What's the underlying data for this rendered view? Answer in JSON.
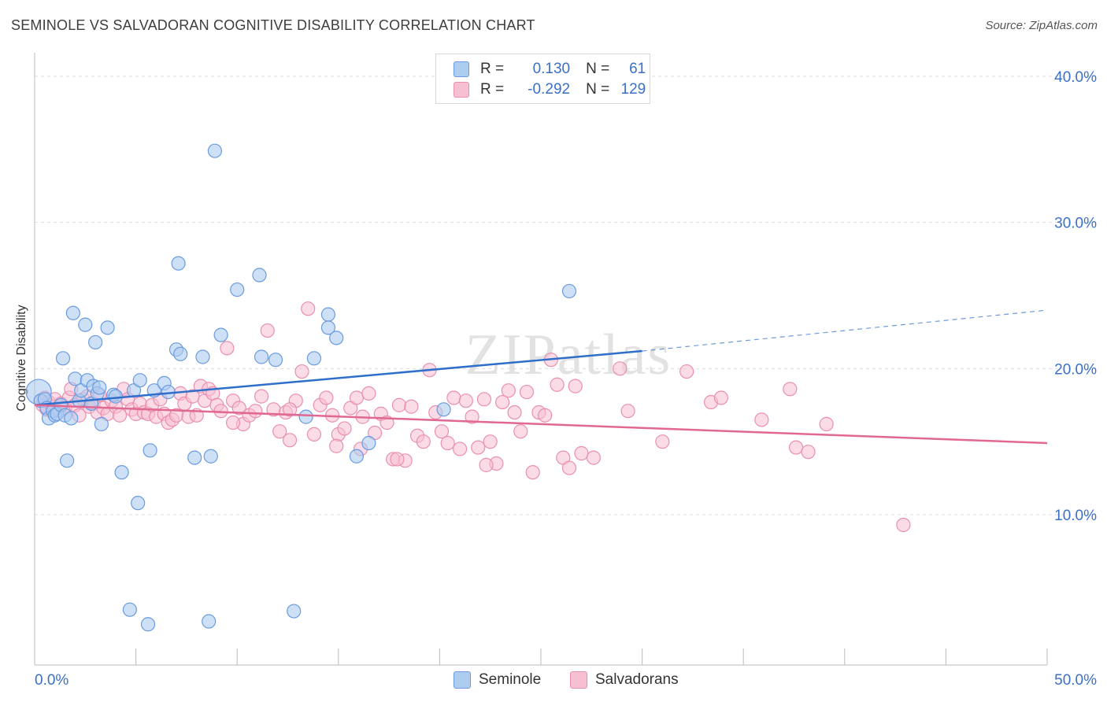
{
  "title": "SEMINOLE VS SALVADORAN COGNITIVE DISABILITY CORRELATION CHART",
  "source": "Source: ZipAtlas.com",
  "watermark": "ZIPatlas",
  "legend": {
    "rows": [
      {
        "r_label": "R =",
        "r_value": "0.130",
        "n_label": "N =",
        "n_value": "61"
      },
      {
        "r_label": "R =",
        "r_value": "-0.292",
        "n_label": "N =",
        "n_value": "129"
      }
    ]
  },
  "bottom_legend": [
    "Seminole",
    "Salvadorans"
  ],
  "colors": {
    "seminole_fill": "#aecbf0",
    "seminole_stroke": "#6a9be0",
    "seminole_line": "#2f6fcb",
    "salvadoran_fill": "#f7c0d2",
    "salvadoran_stroke": "#e98fb0",
    "salvadoran_line": "#e06892",
    "tick_label": "#3a70c9",
    "grid": "#dedede"
  },
  "chart_data": {
    "type": "scatter",
    "title": "SEMINOLE VS SALVADORAN COGNITIVE DISABILITY CORRELATION CHART",
    "xlabel": "",
    "ylabel": "Cognitive Disability",
    "xlim": [
      0,
      50
    ],
    "ylim": [
      0,
      40
    ],
    "x_tick_labels": [
      "0.0%",
      "50.0%"
    ],
    "y_ticks": [
      10,
      20,
      30,
      40
    ],
    "y_tick_labels": [
      "10.0%",
      "20.0%",
      "30.0%",
      "40.0%"
    ],
    "grid": true,
    "series": [
      {
        "name": "Seminole",
        "r": 0.13,
        "n": 61,
        "trend": {
          "x": [
            0,
            30
          ],
          "y": [
            17.5,
            21.2
          ],
          "dashed_to_x": 50,
          "dashed_to_y": 24.0
        },
        "points": [
          [
            0.2,
            18.4
          ],
          [
            0.3,
            17.8
          ],
          [
            0.5,
            17.9
          ],
          [
            0.6,
            17.3
          ],
          [
            0.7,
            16.6
          ],
          [
            0.9,
            17.1
          ],
          [
            1.0,
            16.8
          ],
          [
            1.1,
            16.9
          ],
          [
            1.3,
            17.5
          ],
          [
            1.4,
            20.7
          ],
          [
            1.5,
            16.8
          ],
          [
            1.6,
            13.7
          ],
          [
            1.8,
            16.6
          ],
          [
            1.9,
            23.8
          ],
          [
            2.0,
            19.3
          ],
          [
            2.2,
            17.8
          ],
          [
            2.3,
            18.5
          ],
          [
            2.5,
            23.0
          ],
          [
            2.6,
            19.2
          ],
          [
            2.8,
            17.6
          ],
          [
            2.9,
            18.8
          ],
          [
            3.0,
            21.8
          ],
          [
            3.1,
            18.3
          ],
          [
            3.2,
            18.7
          ],
          [
            3.3,
            16.2
          ],
          [
            3.6,
            22.8
          ],
          [
            3.9,
            18.2
          ],
          [
            4.0,
            18.1
          ],
          [
            4.3,
            12.9
          ],
          [
            4.9,
            18.5
          ],
          [
            5.1,
            10.8
          ],
          [
            5.2,
            19.2
          ],
          [
            5.7,
            14.4
          ],
          [
            5.9,
            18.5
          ],
          [
            6.4,
            19.0
          ],
          [
            6.6,
            18.4
          ],
          [
            7.0,
            21.3
          ],
          [
            7.1,
            27.2
          ],
          [
            7.2,
            21.0
          ],
          [
            7.9,
            13.9
          ],
          [
            8.3,
            20.8
          ],
          [
            8.7,
            14.0
          ],
          [
            8.9,
            34.9
          ],
          [
            9.2,
            22.3
          ],
          [
            10.0,
            25.4
          ],
          [
            11.1,
            26.4
          ],
          [
            11.2,
            20.8
          ],
          [
            11.9,
            20.6
          ],
          [
            13.4,
            16.7
          ],
          [
            13.8,
            20.7
          ],
          [
            14.5,
            23.7
          ],
          [
            14.5,
            22.8
          ],
          [
            14.9,
            22.1
          ],
          [
            15.9,
            14.0
          ],
          [
            16.5,
            14.9
          ],
          [
            20.2,
            17.2
          ],
          [
            26.4,
            25.3
          ],
          [
            4.7,
            3.5
          ],
          [
            5.6,
            2.5
          ],
          [
            8.6,
            2.7
          ],
          [
            12.8,
            3.4
          ]
        ]
      },
      {
        "name": "Salvadorans",
        "r": -0.292,
        "n": 129,
        "trend": {
          "x": [
            0,
            50
          ],
          "y": [
            17.5,
            14.9
          ]
        },
        "points": [
          [
            0.3,
            17.8
          ],
          [
            0.4,
            17.5
          ],
          [
            0.5,
            18.0
          ],
          [
            0.6,
            17.2
          ],
          [
            0.7,
            17.7
          ],
          [
            0.9,
            17.4
          ],
          [
            1.0,
            17.9
          ],
          [
            1.2,
            17.1
          ],
          [
            1.3,
            17.6
          ],
          [
            1.5,
            17.3
          ],
          [
            1.7,
            18.0
          ],
          [
            1.8,
            18.6
          ],
          [
            2.0,
            17.5
          ],
          [
            2.2,
            16.8
          ],
          [
            2.4,
            17.9
          ],
          [
            2.6,
            18.1
          ],
          [
            2.7,
            17.4
          ],
          [
            2.9,
            17.6
          ],
          [
            3.1,
            17.0
          ],
          [
            3.2,
            18.2
          ],
          [
            3.4,
            17.3
          ],
          [
            3.6,
            16.9
          ],
          [
            3.8,
            17.8
          ],
          [
            4.0,
            17.4
          ],
          [
            4.2,
            16.8
          ],
          [
            4.4,
            18.6
          ],
          [
            4.6,
            17.9
          ],
          [
            4.8,
            17.2
          ],
          [
            5.0,
            16.9
          ],
          [
            5.2,
            17.6
          ],
          [
            5.4,
            17.0
          ],
          [
            5.6,
            16.9
          ],
          [
            5.8,
            17.5
          ],
          [
            6.0,
            16.7
          ],
          [
            6.2,
            17.9
          ],
          [
            6.4,
            16.9
          ],
          [
            6.6,
            16.3
          ],
          [
            6.8,
            16.5
          ],
          [
            7.0,
            16.8
          ],
          [
            7.2,
            18.3
          ],
          [
            7.4,
            17.6
          ],
          [
            7.6,
            16.7
          ],
          [
            7.8,
            18.1
          ],
          [
            8.0,
            16.8
          ],
          [
            8.2,
            18.8
          ],
          [
            8.4,
            17.8
          ],
          [
            8.6,
            18.6
          ],
          [
            8.8,
            18.3
          ],
          [
            9.0,
            17.5
          ],
          [
            9.2,
            17.1
          ],
          [
            9.5,
            21.4
          ],
          [
            9.8,
            17.8
          ],
          [
            10.1,
            17.3
          ],
          [
            10.3,
            16.2
          ],
          [
            10.6,
            16.8
          ],
          [
            10.9,
            17.1
          ],
          [
            11.2,
            18.1
          ],
          [
            11.5,
            22.6
          ],
          [
            11.8,
            17.2
          ],
          [
            12.1,
            15.7
          ],
          [
            12.4,
            17.0
          ],
          [
            12.6,
            15.1
          ],
          [
            12.9,
            17.8
          ],
          [
            13.2,
            19.8
          ],
          [
            13.5,
            24.1
          ],
          [
            13.8,
            15.5
          ],
          [
            14.1,
            17.5
          ],
          [
            14.4,
            18.0
          ],
          [
            14.7,
            16.8
          ],
          [
            15.0,
            15.5
          ],
          [
            15.3,
            15.9
          ],
          [
            15.6,
            17.3
          ],
          [
            15.9,
            18.0
          ],
          [
            16.2,
            16.7
          ],
          [
            16.5,
            18.3
          ],
          [
            16.8,
            15.6
          ],
          [
            17.1,
            16.9
          ],
          [
            17.4,
            16.3
          ],
          [
            17.7,
            13.8
          ],
          [
            18.0,
            17.5
          ],
          [
            18.3,
            13.7
          ],
          [
            18.6,
            17.4
          ],
          [
            18.9,
            15.4
          ],
          [
            19.2,
            15.0
          ],
          [
            19.5,
            19.9
          ],
          [
            19.8,
            17.0
          ],
          [
            20.1,
            15.7
          ],
          [
            20.4,
            14.9
          ],
          [
            20.7,
            18.0
          ],
          [
            21.0,
            14.5
          ],
          [
            21.3,
            17.8
          ],
          [
            21.6,
            16.7
          ],
          [
            21.9,
            14.6
          ],
          [
            22.2,
            17.9
          ],
          [
            22.5,
            15.0
          ],
          [
            22.8,
            13.5
          ],
          [
            23.1,
            17.7
          ],
          [
            23.4,
            18.5
          ],
          [
            23.7,
            17.0
          ],
          [
            24.0,
            15.7
          ],
          [
            24.3,
            18.4
          ],
          [
            24.6,
            12.9
          ],
          [
            24.9,
            17.0
          ],
          [
            25.2,
            16.8
          ],
          [
            25.5,
            20.6
          ],
          [
            25.8,
            18.9
          ],
          [
            26.1,
            13.9
          ],
          [
            26.4,
            13.2
          ],
          [
            26.7,
            18.8
          ],
          [
            27.0,
            14.2
          ],
          [
            27.6,
            13.9
          ],
          [
            28.9,
            20.0
          ],
          [
            29.3,
            17.1
          ],
          [
            31.0,
            15.0
          ],
          [
            32.2,
            19.8
          ],
          [
            33.4,
            17.7
          ],
          [
            33.9,
            18.0
          ],
          [
            35.9,
            16.5
          ],
          [
            37.3,
            18.6
          ],
          [
            37.6,
            14.6
          ],
          [
            38.2,
            14.3
          ],
          [
            39.1,
            16.2
          ],
          [
            42.9,
            9.3
          ],
          [
            9.8,
            16.3
          ],
          [
            12.6,
            17.2
          ],
          [
            14.9,
            14.7
          ],
          [
            16.1,
            14.5
          ],
          [
            17.9,
            13.8
          ],
          [
            22.3,
            13.4
          ]
        ]
      }
    ]
  }
}
